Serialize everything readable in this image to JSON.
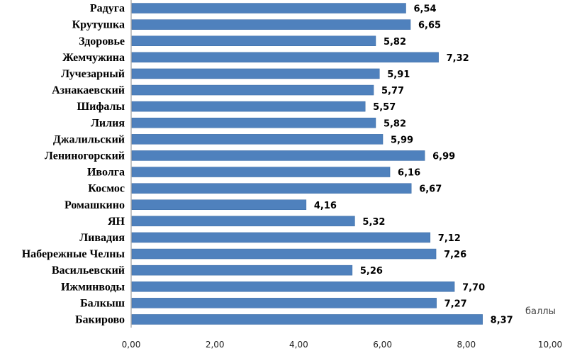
{
  "chart_data": {
    "type": "bar",
    "orientation": "horizontal",
    "categories": [
      "Радуга",
      "Крутушка",
      "Здоровье",
      "Жемчужина",
      "Лучезарный",
      "Азнакаевский",
      "Шифалы",
      "Лилия",
      "Джалильский",
      "Лениногорский",
      "Иволга",
      "Космос",
      "Ромашкино",
      "ЯН",
      "Ливадия",
      "Набережные Челны",
      "Васильевский",
      "Ижминводы",
      "Балкыш",
      "Бакирово"
    ],
    "values": [
      6.54,
      6.65,
      5.82,
      7.32,
      5.91,
      5.77,
      5.57,
      5.82,
      5.99,
      6.99,
      6.16,
      6.67,
      4.16,
      5.32,
      7.12,
      7.26,
      5.26,
      7.7,
      7.27,
      8.37
    ],
    "value_labels": [
      "6,54",
      "6,65",
      "5,82",
      "7,32",
      "5,91",
      "5,77",
      "5,57",
      "5,82",
      "5,99",
      "6,99",
      "6,16",
      "6,67",
      "4,16",
      "5,32",
      "7,12",
      "7,26",
      "5,26",
      "7,70",
      "7,27",
      "8,37"
    ],
    "xlim": [
      0,
      10
    ],
    "x_ticks": [
      0,
      2,
      4,
      6,
      8,
      10
    ],
    "x_tick_labels": [
      "0,00",
      "2,00",
      "4,00",
      "6,00",
      "8,00",
      "10,00"
    ],
    "unit_label": "баллы",
    "title": "",
    "xlabel": "",
    "ylabel": "",
    "grid": false,
    "bar_color": "#4f81bd",
    "bar_edge_color": "#3a6aa5"
  }
}
